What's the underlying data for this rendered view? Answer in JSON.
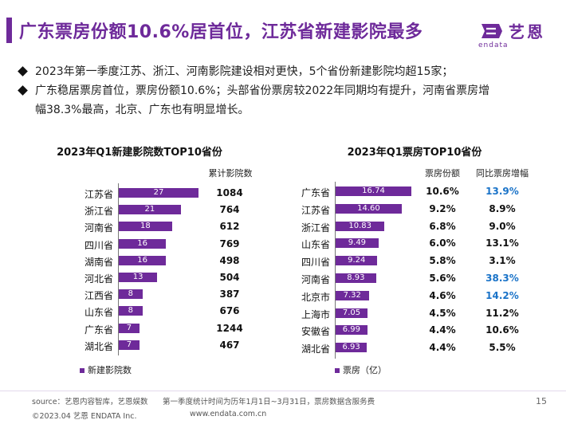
{
  "header": {
    "title": "广东票房份额10.6%居首位，江苏省新建影院最多",
    "logo_cn": "艺恩",
    "logo_en": "endata"
  },
  "bullets": [
    "2023年第一季度江苏、浙江、河南影院建设相对更快，5个省份新建影院均超15家；",
    "广东稳居票房首位，票房份额10.6%；头部省份票房较2022年同期均有提升，河南省票房增",
    "幅38.3%最高，北京、广东也有明显增长。"
  ],
  "colors": {
    "bar": "#6e2a9a",
    "highlight": "#1a73c8",
    "title": "#6e2a9a"
  },
  "chart_data": [
    {
      "type": "bar",
      "orientation": "horizontal",
      "title": "2023年Q1新建影院数TOP10省份",
      "categories": [
        "江苏省",
        "浙江省",
        "河南省",
        "四川省",
        "湖南省",
        "河北省",
        "江西省",
        "山东省",
        "广东省",
        "湖北省"
      ],
      "series": [
        {
          "name": "新建影院数",
          "values": [
            27,
            21,
            18,
            16,
            16,
            13,
            8,
            8,
            7,
            7
          ]
        }
      ],
      "table_columns": [
        {
          "header": "累计影院数",
          "values": [
            "1084",
            "764",
            "612",
            "769",
            "498",
            "504",
            "387",
            "676",
            "1244",
            "467"
          ]
        }
      ],
      "xlim": [
        0,
        27
      ],
      "legend": "bottom-left"
    },
    {
      "type": "bar",
      "orientation": "horizontal",
      "title": "2023年Q1票房TOP10省份",
      "categories": [
        "广东省",
        "江苏省",
        "浙江省",
        "山东省",
        "四川省",
        "河南省",
        "北京市",
        "上海市",
        "安徽省",
        "湖北省"
      ],
      "series": [
        {
          "name": "票房（亿）",
          "values": [
            16.74,
            14.6,
            10.83,
            9.49,
            9.24,
            8.93,
            7.32,
            7.05,
            6.99,
            6.93
          ]
        }
      ],
      "value_labels": [
        "16.74",
        "14.60",
        "10.83",
        "9.49",
        "9.24",
        "8.93",
        "7.32",
        "7.05",
        "6.99",
        "6.93"
      ],
      "table_columns": [
        {
          "header": "票房份额",
          "values": [
            "10.6%",
            "9.2%",
            "6.8%",
            "6.0%",
            "5.8%",
            "5.6%",
            "4.6%",
            "4.5%",
            "4.4%",
            "4.4%"
          ]
        },
        {
          "header": "同比票房增幅",
          "values": [
            "13.9%",
            "8.9%",
            "9.0%",
            "13.1%",
            "3.1%",
            "38.3%",
            "14.2%",
            "11.2%",
            "10.6%",
            "5.5%"
          ],
          "highlighted": [
            true,
            false,
            false,
            false,
            false,
            true,
            true,
            false,
            false,
            false
          ]
        }
      ],
      "xlim": [
        0,
        16.74
      ],
      "legend": "bottom-left"
    }
  ],
  "footer": {
    "source": "source：艺恩内容智库，艺恩娱数",
    "note": "第一季度统计时间为历年1月1日~3月31日，票房数据含服务费",
    "copyright": "©2023.04 艺恩 ENDATA Inc.",
    "website": "www.endata.com.cn",
    "page": "15"
  }
}
